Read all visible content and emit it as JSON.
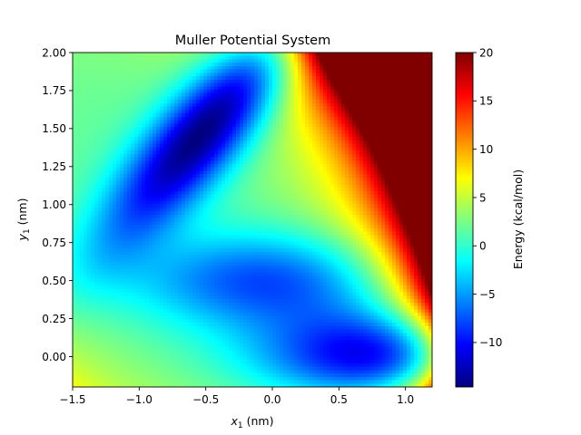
{
  "chart_data": {
    "type": "heatmap",
    "title": "Muller Potential System",
    "xlabel_main": "x",
    "xlabel_sub": "1",
    "xlabel_unit": " (nm)",
    "ylabel_main": "y",
    "ylabel_sub": "1",
    "ylabel_unit": " (nm)",
    "colorbar_label": "Energy (kcal/mol)",
    "colormap": "jet",
    "xlim": [
      -1.5,
      1.2
    ],
    "ylim": [
      -0.2,
      2.0
    ],
    "color_range": [
      -14.6,
      20
    ],
    "x_ticks": [
      -1.5,
      -1.0,
      -0.5,
      0.0,
      0.5,
      1.0
    ],
    "x_tick_labels": [
      "−1.5",
      "−1.0",
      "−0.5",
      "0.0",
      "0.5",
      "1.0"
    ],
    "y_ticks": [
      0.0,
      0.25,
      0.5,
      0.75,
      1.0,
      1.25,
      1.5,
      1.75,
      2.0
    ],
    "y_tick_labels": [
      "0.00",
      "0.25",
      "0.50",
      "0.75",
      "1.00",
      "1.25",
      "1.50",
      "1.75",
      "2.00"
    ],
    "colorbar_ticks": [
      -10,
      -5,
      0,
      5,
      10,
      15,
      20
    ],
    "colorbar_tick_labels": [
      "−10",
      "−5",
      "0",
      "5",
      "10",
      "15",
      "20"
    ],
    "grid": false,
    "minima": [
      {
        "x": -0.56,
        "y": 1.44,
        "energy": -14.6
      },
      {
        "x": 0.62,
        "y": 0.03,
        "energy": -10.4
      },
      {
        "x": -0.05,
        "y": 0.47,
        "energy": -7.9
      }
    ]
  }
}
